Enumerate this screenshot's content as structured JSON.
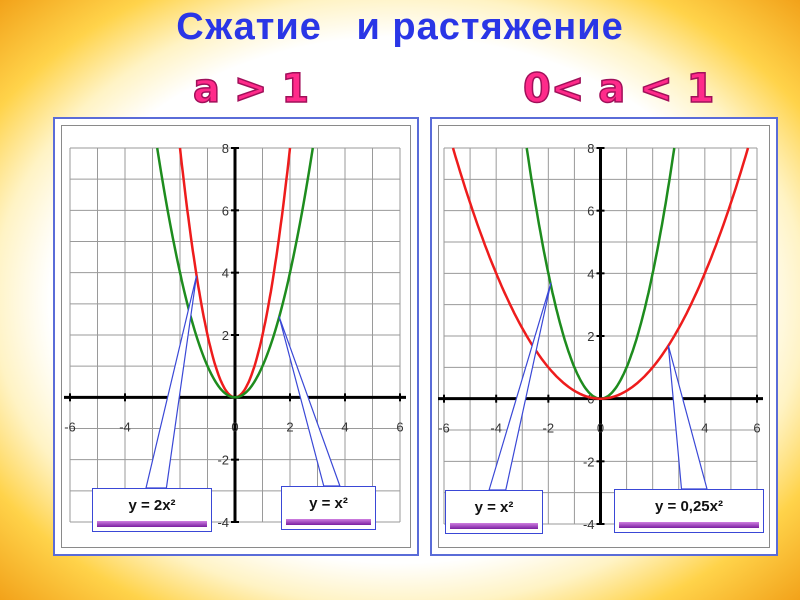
{
  "slide": {
    "title": "Сжатие   и растяжение",
    "condition_left": "a > 1",
    "condition_right": "0< a < 1"
  },
  "colors": {
    "title": "#2a36e6",
    "condition": "#ff2a8a",
    "red_curve": "#ee1c1c",
    "green_curve": "#1e8c1e",
    "callout": "#3a48d6"
  },
  "chart_data": [
    {
      "type": "line",
      "xlim": [
        -6,
        6
      ],
      "ylim": [
        -4,
        8
      ],
      "x_ticks": [
        "-6",
        "-4",
        "0",
        "2",
        "4",
        "6"
      ],
      "y_ticks": [
        "8",
        "6",
        "4",
        "2",
        "-2",
        "-4"
      ],
      "grid": true,
      "series": [
        {
          "name": "y = 2x²",
          "color": "red",
          "a": 2
        },
        {
          "name": "y = x²",
          "color": "green",
          "a": 1
        }
      ],
      "labels": [
        {
          "text": "y = 2x²",
          "points_to": [
            -1.4,
            3.9
          ]
        },
        {
          "text": "y = x²",
          "points_to": [
            1.6,
            2.6
          ]
        }
      ]
    },
    {
      "type": "line",
      "xlim": [
        -6,
        6
      ],
      "ylim": [
        -4,
        8
      ],
      "x_ticks": [
        "-6",
        "-4",
        "-2",
        "0",
        "4",
        "6"
      ],
      "y_ticks": [
        "8",
        "6",
        "4",
        "2",
        "0",
        "-2",
        "-4"
      ],
      "grid": true,
      "series": [
        {
          "name": "y = x²",
          "color": "green",
          "a": 1
        },
        {
          "name": "y = 0,25x²",
          "color": "red",
          "a": 0.25
        }
      ],
      "labels": [
        {
          "text": "y = x²",
          "points_to": [
            -1.9,
            3.7
          ]
        },
        {
          "text": "y = 0,25x²",
          "points_to": [
            2.6,
            1.7
          ]
        }
      ]
    }
  ]
}
